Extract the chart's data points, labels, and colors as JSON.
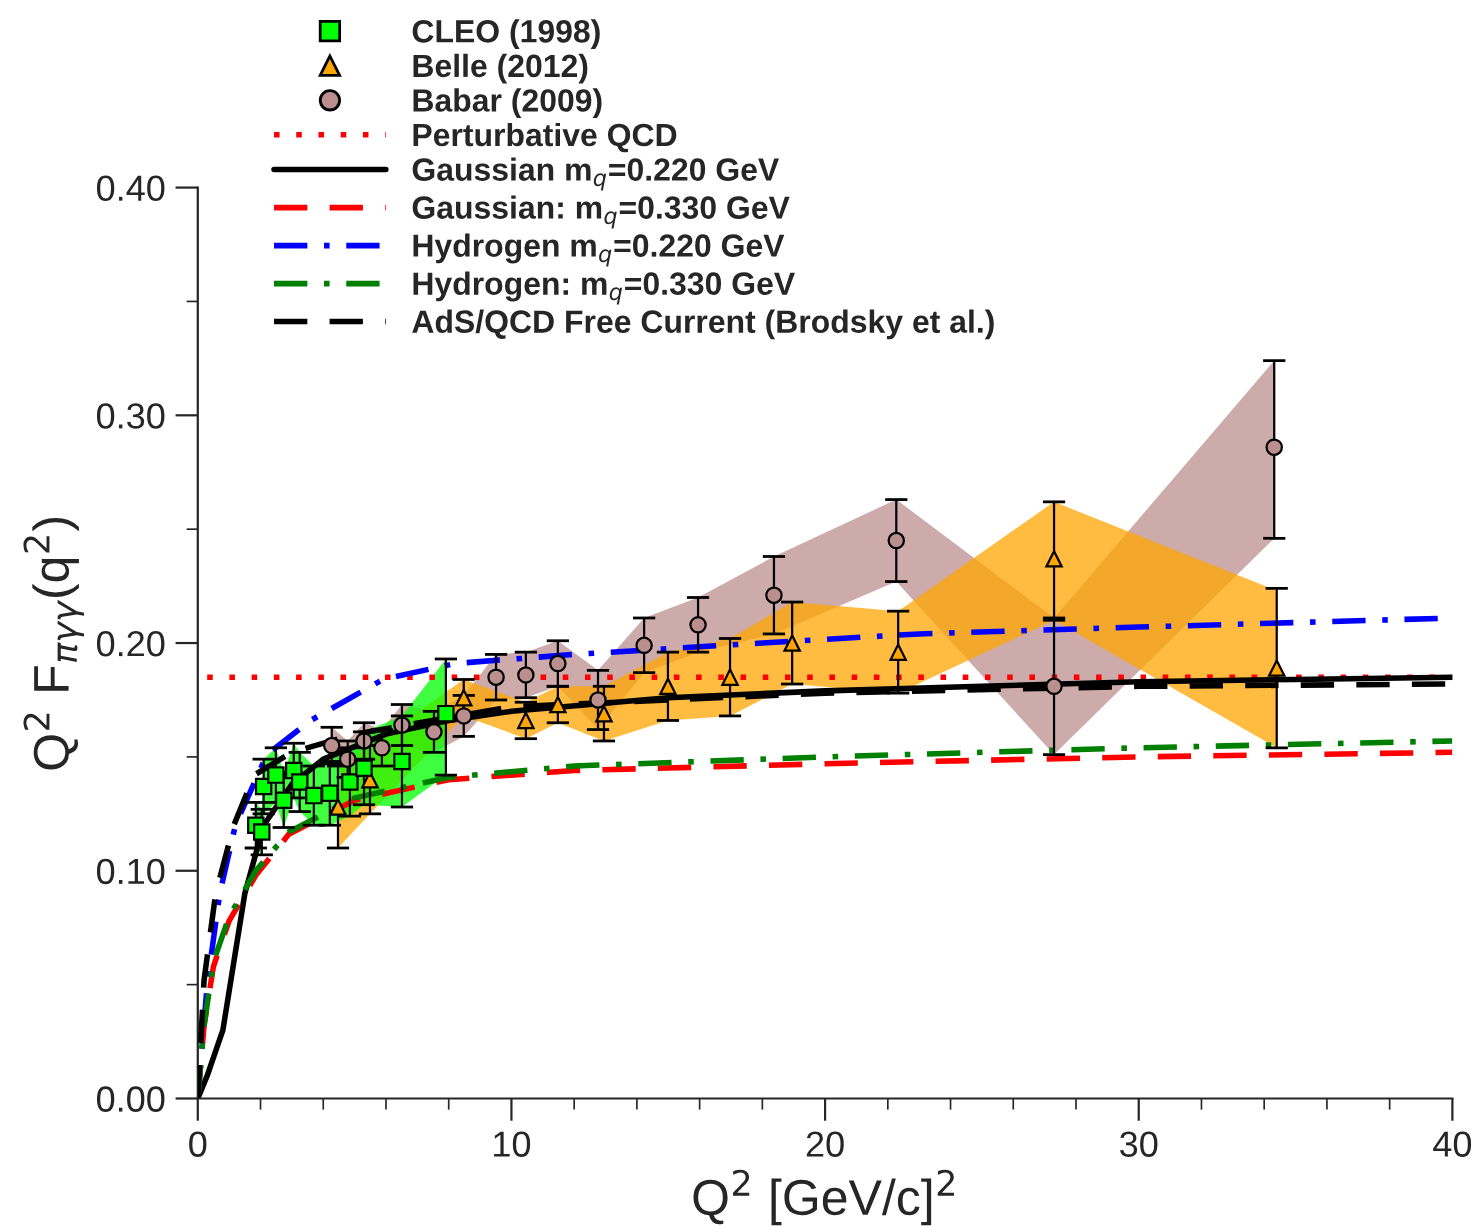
{
  "chart_data": {
    "type": "line",
    "xlabel": "Q$^{2}$ [GeV/c]$^{2}$",
    "ylabel": "Q$^{2}$ F$_{πγγ}$(q$^{2}$)",
    "xlim": [
      0,
      40
    ],
    "xticks": [
      0,
      10,
      20,
      30,
      40
    ],
    "ylim": [
      0,
      0.4
    ],
    "yticks": [
      {
        "value": 0,
        "label": "0.00"
      },
      {
        "value": 0.1,
        "label": "0.10"
      },
      {
        "value": 0.2,
        "label": "0.20"
      },
      {
        "value": 0.3,
        "label": "0.30"
      },
      {
        "value": 0.4,
        "label": "0.40"
      }
    ],
    "grid": false,
    "legend": "top",
    "series": [
      {
        "name": "CLEO (1998)",
        "type": "scatter",
        "marker": "square",
        "color": "#00ff00",
        "x": [
          1.85,
          2.04,
          2.1,
          2.49,
          2.74,
          3.06,
          3.25,
          3.7,
          4.21,
          4.85,
          5.3,
          6.51,
          7.91
        ],
        "values": [
          0.12,
          0.117,
          0.137,
          0.142,
          0.131,
          0.144,
          0.139,
          0.133,
          0.134,
          0.139,
          0.145,
          0.148,
          0.169
        ],
        "errors": [
          0.01,
          0.01,
          0.012,
          0.012,
          0.012,
          0.012,
          0.013,
          0.013,
          0.014,
          0.015,
          0.016,
          0.02,
          [
            0.142,
            0.193
          ]
        ],
        "lower": [
          0.11,
          0.107,
          0.125,
          0.13,
          0.119,
          0.132,
          0.126,
          0.12,
          0.12,
          0.124,
          0.129,
          0.128,
          0.142
        ],
        "upper": [
          0.13,
          0.127,
          0.149,
          0.154,
          0.143,
          0.156,
          0.152,
          0.146,
          0.148,
          0.154,
          0.161,
          0.168,
          0.193
        ]
      },
      {
        "name": "Belle (2012)",
        "type": "scatter",
        "marker": "triangle",
        "color": "#ffa500",
        "x": [
          4.47,
          5.49,
          8.48,
          10.46,
          11.48,
          12.95,
          14.99,
          16.97,
          18.95,
          22.33,
          27.3,
          34.4
        ],
        "values": [
          0.128,
          0.14,
          0.176,
          0.166,
          0.173,
          0.169,
          0.181,
          0.185,
          0.2,
          0.196,
          0.237,
          0.189
        ],
        "errors": [
          0.018,
          0.015,
          0.008,
          0.008,
          0.008,
          0.012,
          0.015,
          0.017,
          0.018,
          0.018,
          [
            0.21,
            0.262
          ],
          0.035
        ],
        "lower": [
          0.11,
          0.125,
          0.168,
          0.158,
          0.165,
          0.157,
          0.166,
          0.168,
          0.182,
          0.178,
          0.21,
          0.154
        ],
        "upper": [
          0.146,
          0.155,
          0.184,
          0.174,
          0.181,
          0.181,
          0.196,
          0.202,
          0.218,
          0.214,
          0.262,
          0.223
        ]
      },
      {
        "name": "Babar (2009)",
        "type": "scatter",
        "marker": "circle",
        "color": "#bc8f8f",
        "x": [
          4.27,
          4.78,
          5.3,
          5.87,
          6.51,
          7.53,
          8.48,
          9.51,
          10.46,
          11.48,
          12.76,
          14.23,
          15.95,
          18.37,
          22.27,
          27.3,
          34.32
        ],
        "values": [
          0.155,
          0.149,
          0.157,
          0.154,
          0.164,
          0.161,
          0.168,
          0.185,
          0.186,
          0.191,
          0.175,
          0.199,
          0.208,
          0.221,
          0.245,
          0.181,
          0.286
        ],
        "errors": [
          0.008,
          0.008,
          0.008,
          0.008,
          0.009,
          0.009,
          0.009,
          0.01,
          0.01,
          0.01,
          0.013,
          0.012,
          0.012,
          0.017,
          0.018,
          0.03,
          [
            0.246,
            0.324
          ]
        ],
        "lower": [
          0.147,
          0.141,
          0.149,
          0.146,
          0.155,
          0.152,
          0.159,
          0.175,
          0.176,
          0.181,
          0.162,
          0.187,
          0.196,
          0.204,
          0.227,
          0.151,
          0.246
        ],
        "upper": [
          0.163,
          0.157,
          0.165,
          0.162,
          0.173,
          0.17,
          0.177,
          0.195,
          0.196,
          0.201,
          0.188,
          0.211,
          0.22,
          0.238,
          0.263,
          0.211,
          0.324
        ]
      },
      {
        "name": "Perturbative QCD",
        "line_style": "dotted",
        "color": "#ff0000",
        "x": [
          0.3,
          40
        ],
        "values": [
          0.185,
          0.185
        ]
      },
      {
        "name": "Gaussian m$_{q}$=0.220 GeV",
        "line_style": "solid",
        "color": "#000000",
        "x": [
          0,
          0.3,
          0.8,
          1.5,
          2.1,
          3,
          4,
          6,
          8,
          10,
          15,
          20,
          25,
          30,
          35,
          40
        ],
        "values": [
          0,
          0.01,
          0.03,
          0.09,
          0.12,
          0.138,
          0.149,
          0.16,
          0.166,
          0.17,
          0.176,
          0.179,
          0.181,
          0.183,
          0.184,
          0.185
        ]
      },
      {
        "name": "Gaussian: m$_{q}$=0.330 GeV",
        "line_style": "dashed",
        "color": "#ff0000",
        "x": [
          0,
          0.2,
          0.5,
          1,
          1.85,
          2.9,
          5,
          8,
          12,
          20,
          30,
          40
        ],
        "values": [
          0,
          0.032,
          0.058,
          0.078,
          0.098,
          0.116,
          0.131,
          0.14,
          0.144,
          0.147,
          0.15,
          0.152
        ]
      },
      {
        "name": "Hydrogen m$_{q}$=0.220 GeV",
        "line_style": "dashdot",
        "color": "#0000ff",
        "x": [
          0,
          0.3,
          0.7,
          1.2,
          2.2,
          3.6,
          5.9,
          8.2,
          12,
          18,
          23,
          30,
          40
        ],
        "values": [
          0,
          0.05,
          0.09,
          0.12,
          0.151,
          0.166,
          0.184,
          0.191,
          0.195,
          0.2,
          0.204,
          0.207,
          0.211
        ]
      },
      {
        "name": "Hydrogen: m$_{q}$=0.330 GeV",
        "line_style": "dashdot",
        "color": "#008000",
        "x": [
          0,
          0.2,
          0.5,
          1,
          1.85,
          2.9,
          5,
          8,
          12,
          20,
          30,
          40
        ],
        "values": [
          0,
          0.032,
          0.06,
          0.08,
          0.1,
          0.117,
          0.132,
          0.141,
          0.146,
          0.15,
          0.154,
          0.157
        ]
      },
      {
        "name": "AdS/QCD Free Current (Brodsky et al.)",
        "line_style": "dashed",
        "color": "#000000",
        "x": [
          0,
          0.2,
          0.57,
          1.15,
          1.8,
          3,
          5,
          10,
          20,
          30,
          40
        ],
        "values": [
          0,
          0.052,
          0.09,
          0.12,
          0.142,
          0.152,
          0.16,
          0.172,
          0.178,
          0.181,
          0.182
        ]
      }
    ]
  }
}
